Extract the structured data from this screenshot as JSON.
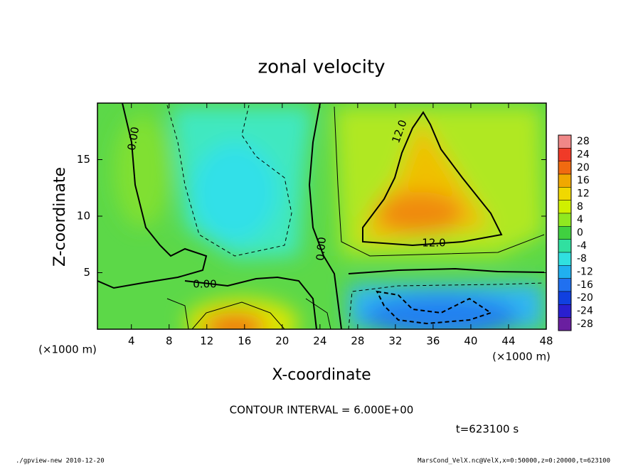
{
  "chart_data": {
    "type": "contour",
    "title": "zonal velocity",
    "xlabel": "X-coordinate",
    "ylabel": "Z-coordinate",
    "x_unit": "(×1000 m)",
    "xlim": [
      0.4,
      48
    ],
    "xticks": [
      4,
      8,
      12,
      16,
      20,
      24,
      28,
      32,
      36,
      40,
      44,
      48
    ],
    "ylim": [
      0,
      20
    ],
    "yticks": [
      5,
      10,
      15
    ],
    "contour_labels": [
      {
        "value": 0,
        "label": "0.00"
      },
      {
        "value": 0,
        "label": "0.00"
      },
      {
        "value": 0,
        "label": "0.00"
      },
      {
        "value": 12,
        "label": "12.0"
      },
      {
        "value": 12,
        "label": "12.0"
      }
    ],
    "colorbar": {
      "lim": [
        -30,
        30
      ],
      "ticks": [
        28,
        24,
        20,
        16,
        12,
        8,
        4,
        0,
        -4,
        -8,
        -12,
        -16,
        -20,
        -24,
        -28
      ],
      "colors": [
        "#f08888",
        "#f03a28",
        "#f06a10",
        "#f0a800",
        "#f0d800",
        "#d0f000",
        "#90e820",
        "#40d040",
        "#30e0a0",
        "#30e0e0",
        "#20b0f0",
        "#2070f0",
        "#1040e0",
        "#2a1fd0",
        "#6a1fa0"
      ]
    },
    "contour_interval": "CONTOUR INTERVAL = 6.000E+00",
    "time": "t=623100 s",
    "footer_left": "./gpview-new  2010-12-20",
    "footer_right": "MarsCond_VelX.nc@VelX,x=0:50000,z=0:20000,t=623100"
  }
}
